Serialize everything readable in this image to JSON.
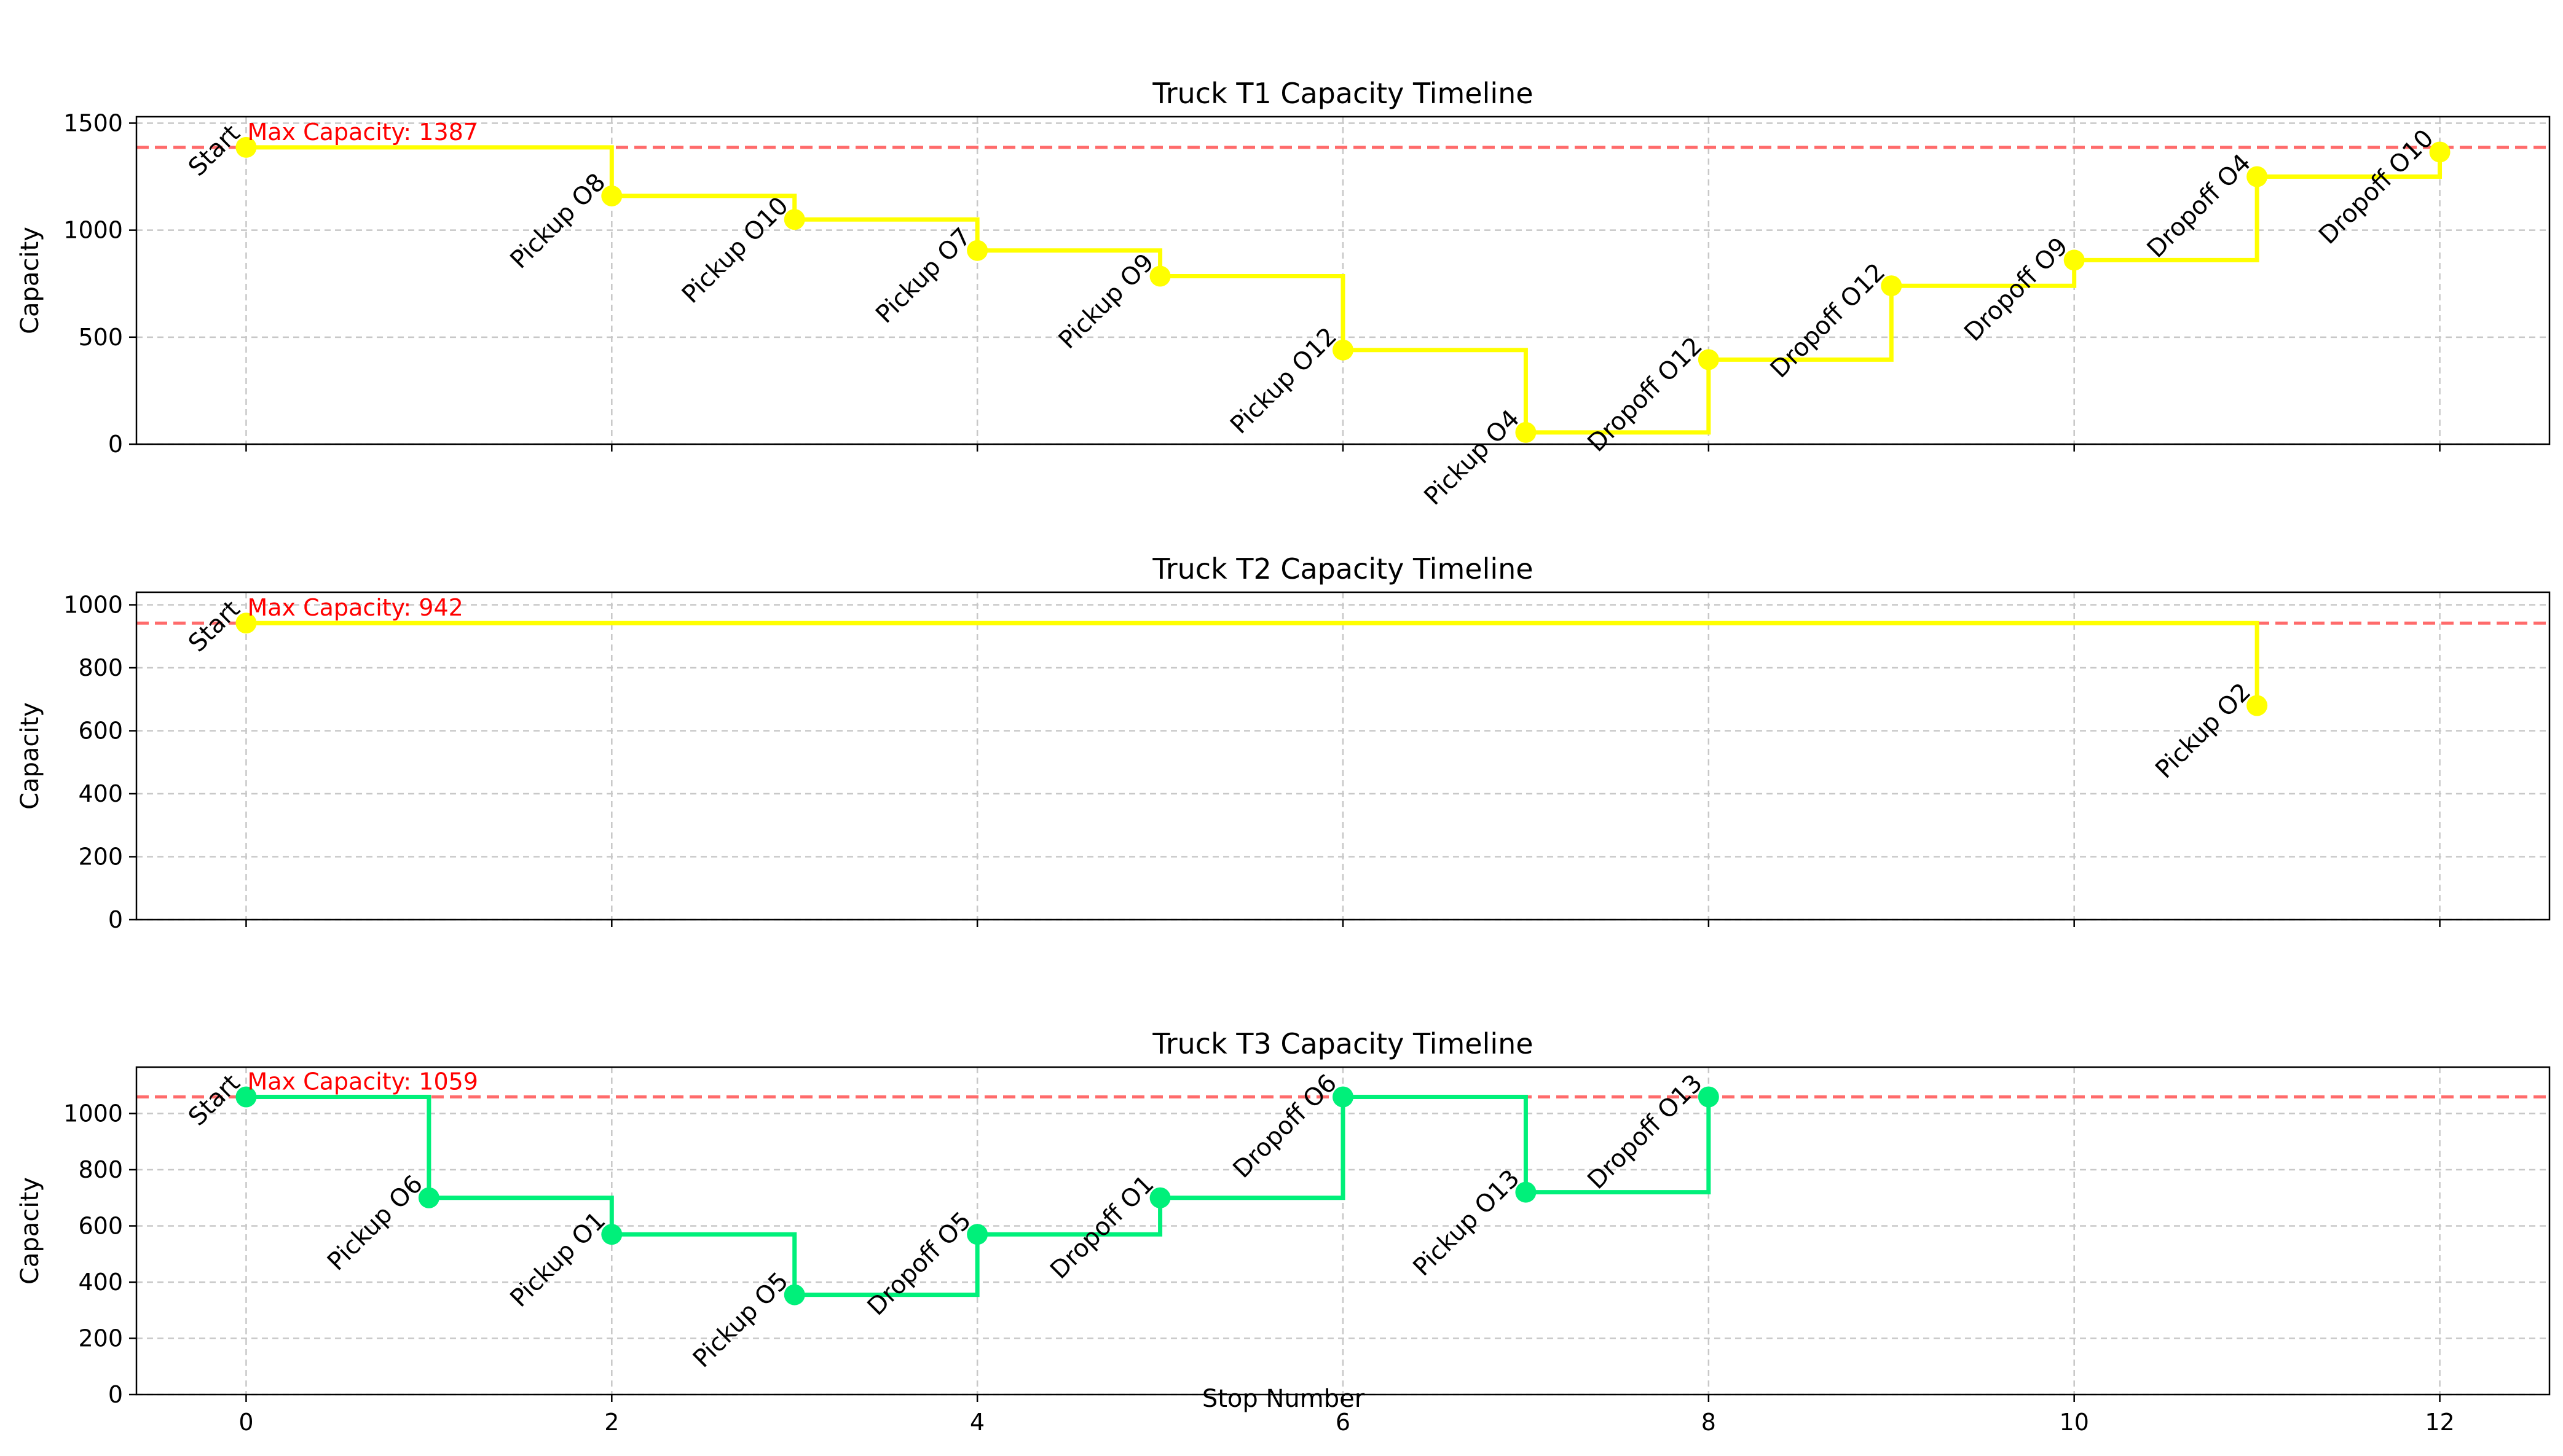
{
  "figure": {
    "xlabel": "Stop Number",
    "xticks": [
      0,
      2,
      4,
      6,
      8,
      10,
      12
    ],
    "xlim": [
      -0.6,
      12.6
    ],
    "colors": {
      "limit_line": "#ff6b6b",
      "limit_text": "#ff0000",
      "grid": "#c8c8c8"
    }
  },
  "chart_data": [
    {
      "type": "line",
      "step": "post",
      "title": "Truck T1 Capacity Timeline",
      "ylabel": "Capacity",
      "ylim": [
        0,
        1530
      ],
      "yticks": [
        0,
        500,
        1000,
        1500
      ],
      "color": "#ffff00",
      "max_capacity": 1387,
      "max_label": "Max Capacity: 1387",
      "grid": true,
      "points": [
        {
          "x": 0,
          "y": 1387,
          "label": "Start"
        },
        {
          "x": 2,
          "y": 1160,
          "label": "Pickup O8"
        },
        {
          "x": 3,
          "y": 1050,
          "label": "Pickup O10"
        },
        {
          "x": 4,
          "y": 905,
          "label": "Pickup O7"
        },
        {
          "x": 5,
          "y": 785,
          "label": "Pickup O9"
        },
        {
          "x": 6,
          "y": 440,
          "label": "Pickup O12"
        },
        {
          "x": 7,
          "y": 55,
          "label": "Pickup O4"
        },
        {
          "x": 8,
          "y": 395,
          "label": "Dropoff O12"
        },
        {
          "x": 9,
          "y": 740,
          "label": "Dropoff O12"
        },
        {
          "x": 10,
          "y": 860,
          "label": "Dropoff O9"
        },
        {
          "x": 11,
          "y": 1250,
          "label": "Dropoff O4"
        },
        {
          "x": 12,
          "y": 1365,
          "label": "Dropoff O10"
        }
      ]
    },
    {
      "type": "line",
      "step": "post",
      "title": "Truck T2 Capacity Timeline",
      "ylabel": "Capacity",
      "ylim": [
        0,
        1040
      ],
      "yticks": [
        0,
        200,
        400,
        600,
        800,
        1000
      ],
      "color": "#ffff00",
      "max_capacity": 942,
      "max_label": "Max Capacity: 942",
      "grid": true,
      "points": [
        {
          "x": 0,
          "y": 942,
          "label": "Start"
        },
        {
          "x": 11,
          "y": 680,
          "label": "Pickup O2"
        }
      ]
    },
    {
      "type": "line",
      "step": "post",
      "title": "Truck T3 Capacity Timeline",
      "ylabel": "Capacity",
      "ylim": [
        0,
        1165
      ],
      "yticks": [
        0,
        200,
        400,
        600,
        800,
        1000
      ],
      "color": "#00f07a",
      "max_capacity": 1059,
      "max_label": "Max Capacity: 1059",
      "grid": true,
      "points": [
        {
          "x": 0,
          "y": 1059,
          "label": "Start"
        },
        {
          "x": 1,
          "y": 700,
          "label": "Pickup O6"
        },
        {
          "x": 2,
          "y": 570,
          "label": "Pickup O1"
        },
        {
          "x": 3,
          "y": 355,
          "label": "Pickup O5"
        },
        {
          "x": 4,
          "y": 570,
          "label": "Dropoff O5"
        },
        {
          "x": 5,
          "y": 700,
          "label": "Dropoff O1"
        },
        {
          "x": 6,
          "y": 1059,
          "label": "Dropoff O6"
        },
        {
          "x": 7,
          "y": 720,
          "label": "Pickup O13"
        },
        {
          "x": 8,
          "y": 1059,
          "label": "Dropoff O13"
        }
      ]
    }
  ]
}
